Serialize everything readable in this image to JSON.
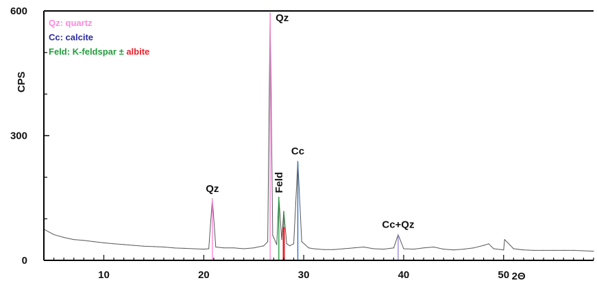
{
  "chart_data": {
    "type": "line",
    "ylabel": "CPS",
    "xlabel": "2Θ",
    "xlim": [
      4,
      59
    ],
    "ylim": [
      0,
      600
    ],
    "x_ticks": [
      10,
      20,
      30,
      40,
      50
    ],
    "y_ticks": [
      0,
      300,
      600
    ],
    "y_minor_ticks": [
      100,
      200,
      400,
      500
    ],
    "grid": false,
    "legend_position": "top-left",
    "legend": [
      {
        "parts": [
          {
            "text": "Qz: quartz",
            "color": "#ff88dd"
          }
        ]
      },
      {
        "parts": [
          {
            "text": "Cc: calcite",
            "color": "#2a2aa0"
          }
        ]
      },
      {
        "parts": [
          {
            "text": "Feld: K-feldspar ± ",
            "color": "#1f9e3a"
          },
          {
            "text": "albite",
            "color": "#e8202a"
          }
        ]
      }
    ],
    "series": [
      {
        "color": "#555555",
        "x": [
          4,
          5,
          6,
          7,
          8,
          9,
          10,
          11,
          12,
          13,
          14,
          15,
          16,
          17,
          18,
          19,
          20,
          20.5,
          20.86,
          21.2,
          22,
          23,
          24,
          25,
          26,
          26.4,
          26.64,
          26.9,
          27.3,
          27.51,
          27.8,
          28.0,
          28.3,
          28.6,
          29.0,
          29.41,
          29.8,
          30.5,
          31,
          32,
          33,
          34,
          35,
          36,
          37,
          38,
          39,
          39.45,
          40,
          41,
          42,
          43,
          44,
          45,
          46,
          47,
          48,
          48.5,
          49,
          50,
          50.1,
          51,
          52,
          53,
          54,
          55,
          56,
          57,
          58,
          59
        ],
        "y": [
          75,
          62,
          55,
          50,
          48,
          45,
          42,
          40,
          38,
          36,
          34,
          33,
          32,
          30,
          29,
          28,
          27,
          28,
          148,
          32,
          30,
          30,
          28,
          30,
          35,
          45,
          595,
          60,
          38,
          152,
          50,
          118,
          40,
          35,
          40,
          238,
          45,
          30,
          28,
          26,
          26,
          28,
          30,
          32,
          28,
          27,
          30,
          62,
          28,
          27,
          30,
          32,
          27,
          25,
          27,
          30,
          36,
          40,
          28,
          25,
          50,
          28,
          25,
          24,
          24,
          24,
          24,
          24,
          23,
          22
        ]
      }
    ],
    "peaks": [
      {
        "x": 20.86,
        "y": 148,
        "color": "#ff88dd"
      },
      {
        "x": 26.64,
        "y": 595,
        "color": "#ff88dd"
      },
      {
        "x": 27.51,
        "y": 152,
        "color": "#1f9e3a"
      },
      {
        "x": 28.0,
        "y": 118,
        "color": "#1f9e3a"
      },
      {
        "x": 28.0,
        "y": 80,
        "color": "#e8202a"
      },
      {
        "x": 29.41,
        "y": 238,
        "color": "#2a6fd0"
      },
      {
        "x": 39.45,
        "y": 62,
        "color": "#9a8ad8"
      }
    ],
    "annotations": [
      {
        "text": "Qz",
        "x": 26.64,
        "y": 595
      },
      {
        "text": "Qz",
        "x": 20.86,
        "y": 148
      },
      {
        "text": "Cc",
        "x": 29.41,
        "y": 238
      },
      {
        "text": "Feld",
        "x": 27.51,
        "y": 152
      },
      {
        "text": "Cc+Qz",
        "x": 39.45,
        "y": 62
      }
    ]
  }
}
